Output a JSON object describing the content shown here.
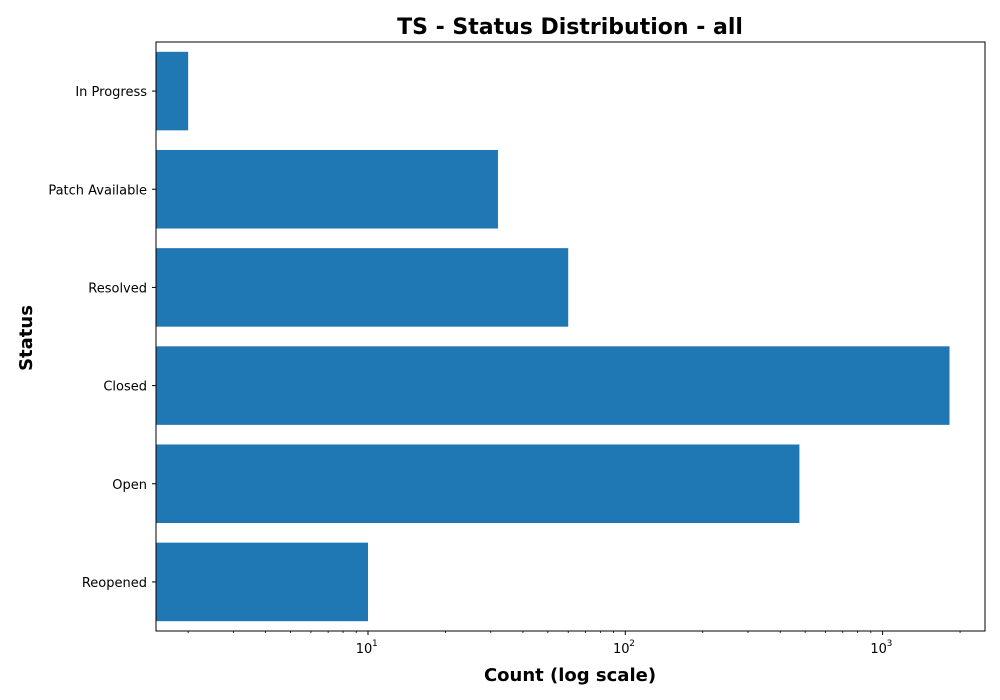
{
  "chart_data": {
    "type": "bar",
    "orientation": "horizontal",
    "title": "TS - Status Distribution - all",
    "xlabel": "Count (log scale)",
    "ylabel": "Status",
    "x_scale": "log",
    "xlim": [
      1.5,
      2500
    ],
    "x_ticks": [
      {
        "value": 10,
        "base": "10",
        "exp": "1"
      },
      {
        "value": 100,
        "base": "10",
        "exp": "2"
      },
      {
        "value": 1000,
        "base": "10",
        "exp": "3"
      }
    ],
    "categories": [
      "In Progress",
      "Patch Available",
      "Resolved",
      "Closed",
      "Open",
      "Reopened"
    ],
    "values": [
      2,
      32,
      60,
      1820,
      475,
      10
    ],
    "bar_color": "#1f77b4",
    "grid": false,
    "legend": "none"
  }
}
